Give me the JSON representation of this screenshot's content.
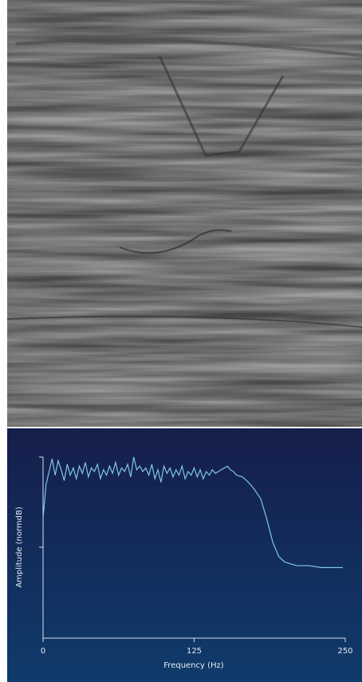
{
  "chart_data": {
    "type": "line",
    "x_label": "Frequency (Hz)",
    "y_label": "Amplitude (normdB)",
    "x": [
      0,
      2.5,
      5,
      7.5,
      10,
      12.5,
      15,
      17.5,
      20,
      22.5,
      25,
      27.5,
      30,
      32.5,
      35,
      37.5,
      40,
      42.5,
      45,
      47.5,
      50,
      52.5,
      55,
      57.5,
      60,
      62.5,
      65,
      67.5,
      70,
      72.5,
      75,
      77.5,
      80,
      82.5,
      85,
      87.5,
      90,
      92.5,
      95,
      97.5,
      100,
      102.5,
      105,
      107.5,
      110,
      112.5,
      115,
      117.5,
      120,
      122.5,
      125,
      127.5,
      130,
      132.5,
      135,
      137.5,
      140,
      142.5,
      145,
      147.5,
      150,
      152.5,
      155,
      157.5,
      160,
      165,
      170,
      175,
      180,
      185,
      190,
      195,
      200,
      205,
      210,
      220,
      230,
      240,
      248
    ],
    "series": [
      {
        "color": "#7ec8e3",
        "values": [
          0.66,
          0.85,
          0.92,
          0.99,
          0.9,
          0.98,
          0.93,
          0.87,
          0.96,
          0.9,
          0.94,
          0.88,
          0.95,
          0.91,
          0.97,
          0.89,
          0.94,
          0.92,
          0.96,
          0.88,
          0.93,
          0.9,
          0.95,
          0.91,
          0.97,
          0.9,
          0.94,
          0.92,
          0.96,
          0.89,
          1.0,
          0.93,
          0.95,
          0.92,
          0.94,
          0.9,
          0.96,
          0.88,
          0.93,
          0.86,
          0.95,
          0.91,
          0.94,
          0.89,
          0.93,
          0.9,
          0.95,
          0.88,
          0.92,
          0.9,
          0.94,
          0.89,
          0.93,
          0.88,
          0.92,
          0.9,
          0.93,
          0.91,
          0.92,
          0.93,
          0.94,
          0.95,
          0.93,
          0.92,
          0.9,
          0.89,
          0.86,
          0.82,
          0.77,
          0.66,
          0.53,
          0.45,
          0.42,
          0.41,
          0.4,
          0.4,
          0.39,
          0.39,
          0.39
        ]
      }
    ],
    "xlim": [
      0,
      250
    ],
    "xticks": [
      0,
      125,
      250
    ],
    "ylim": [
      0,
      1
    ]
  }
}
